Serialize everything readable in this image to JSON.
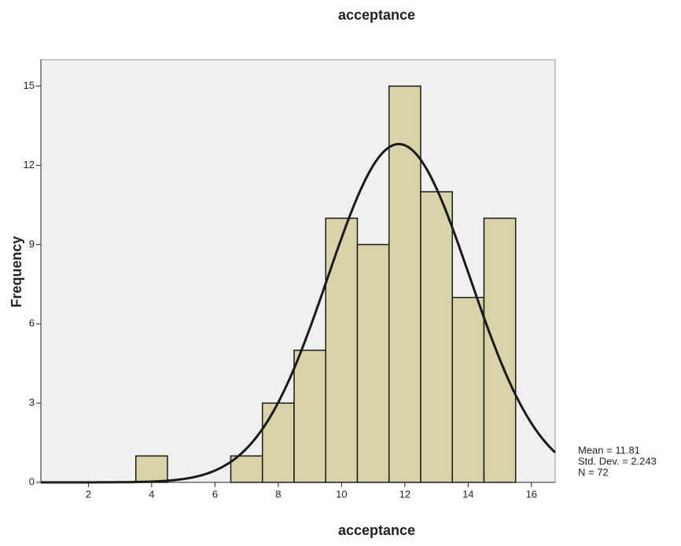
{
  "chart_data": {
    "type": "histogram",
    "title": "acceptance",
    "xlabel": "acceptance",
    "ylabel": "Frequency",
    "bins": [
      3.5,
      4.5,
      5.5,
      6.5,
      7.5,
      8.5,
      9.5,
      10.5,
      11.5,
      12.5,
      13.5,
      14.5,
      15.5
    ],
    "values": [
      1,
      0,
      0,
      1,
      3,
      5,
      10,
      9,
      15,
      11,
      7,
      10
    ],
    "color": "#d8d3a8",
    "edge_color": "#1a1a1a",
    "background": "#f0f0f0",
    "xlim": [
      0.5,
      16.75
    ],
    "xticks": [
      2,
      4,
      6,
      8,
      10,
      12,
      14,
      16
    ],
    "ylim": [
      0,
      16
    ],
    "yticks": [
      0,
      3,
      6,
      9,
      12,
      15
    ],
    "normal_curve": {
      "mean": {
        "value": 11.81,
        "label": "Mean = 11.81"
      },
      "std_dev": {
        "value": 2.243,
        "label": "Std. Dev. = 2.243"
      },
      "n": {
        "value": 72,
        "label": "N = 72"
      }
    }
  }
}
